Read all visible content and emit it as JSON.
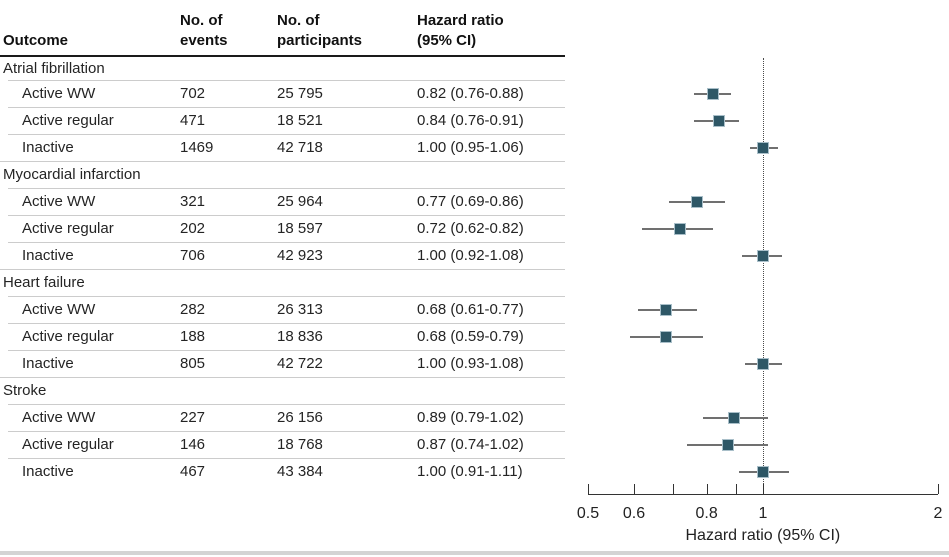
{
  "table_header": {
    "outcome": "Outcome",
    "events": "No. of\nevents",
    "participants": "No. of\nparticipants",
    "hazard_ratio": "Hazard ratio\n(95% CI)"
  },
  "colors": {
    "marker_fill": "#2e5766",
    "marker_border": "#a9bfc9",
    "whisker": "#707070",
    "reference_line": "#4a4a4a",
    "axis": "#333333"
  },
  "chart_data": {
    "type": "scatter",
    "subtype": "forest-plot",
    "x_scale": "log",
    "xlim": [
      0.5,
      2
    ],
    "reference_line": 1,
    "xlabel": "Hazard ratio (95% CI)",
    "ticks": [
      {
        "value": 0.5,
        "label": "0.5"
      },
      {
        "value": 0.6,
        "label": "0.6"
      },
      {
        "value": 0.7,
        "label": ""
      },
      {
        "value": 0.8,
        "label": "0.8"
      },
      {
        "value": 0.9,
        "label": ""
      },
      {
        "value": 1.0,
        "label": "1"
      },
      {
        "value": 2.0,
        "label": "2"
      }
    ],
    "groups": [
      {
        "label": "Atrial fibrillation",
        "rows": [
          {
            "outcome": "Active WW",
            "events": "702",
            "participants": "25 795",
            "hr_text": "0.82 (0.76-0.88)",
            "hr": 0.82,
            "lo": 0.76,
            "hi": 0.88
          },
          {
            "outcome": "Active regular",
            "events": "471",
            "participants": "18 521",
            "hr_text": "0.84 (0.76-0.91)",
            "hr": 0.84,
            "lo": 0.76,
            "hi": 0.91
          },
          {
            "outcome": "Inactive",
            "events": "1469",
            "participants": "42 718",
            "hr_text": "1.00 (0.95-1.06)",
            "hr": 1.0,
            "lo": 0.95,
            "hi": 1.06
          }
        ]
      },
      {
        "label": "Myocardial infarction",
        "rows": [
          {
            "outcome": "Active WW",
            "events": "321",
            "participants": "25 964",
            "hr_text": "0.77 (0.69-0.86)",
            "hr": 0.77,
            "lo": 0.69,
            "hi": 0.86
          },
          {
            "outcome": "Active regular",
            "events": "202",
            "participants": "18 597",
            "hr_text": "0.72 (0.62-0.82)",
            "hr": 0.72,
            "lo": 0.62,
            "hi": 0.82
          },
          {
            "outcome": "Inactive",
            "events": "706",
            "participants": "42 923",
            "hr_text": "1.00 (0.92-1.08)",
            "hr": 1.0,
            "lo": 0.92,
            "hi": 1.08
          }
        ]
      },
      {
        "label": "Heart failure",
        "rows": [
          {
            "outcome": "Active WW",
            "events": "282",
            "participants": "26 313",
            "hr_text": "0.68 (0.61-0.77)",
            "hr": 0.68,
            "lo": 0.61,
            "hi": 0.77
          },
          {
            "outcome": "Active regular",
            "events": "188",
            "participants": "18 836",
            "hr_text": "0.68 (0.59-0.79)",
            "hr": 0.68,
            "lo": 0.59,
            "hi": 0.79
          },
          {
            "outcome": "Inactive",
            "events": "805",
            "participants": "42 722",
            "hr_text": "1.00 (0.93-1.08)",
            "hr": 1.0,
            "lo": 0.93,
            "hi": 1.08
          }
        ]
      },
      {
        "label": "Stroke",
        "rows": [
          {
            "outcome": "Active WW",
            "events": "227",
            "participants": "26 156",
            "hr_text": "0.89 (0.79-1.02)",
            "hr": 0.89,
            "lo": 0.79,
            "hi": 1.02
          },
          {
            "outcome": "Active regular",
            "events": "146",
            "participants": "18 768",
            "hr_text": "0.87 (0.74-1.02)",
            "hr": 0.87,
            "lo": 0.74,
            "hi": 1.02
          },
          {
            "outcome": "Inactive",
            "events": "467",
            "participants": "43 384",
            "hr_text": "1.00 (0.91-1.11)",
            "hr": 1.0,
            "lo": 0.91,
            "hi": 1.11
          }
        ]
      }
    ]
  }
}
